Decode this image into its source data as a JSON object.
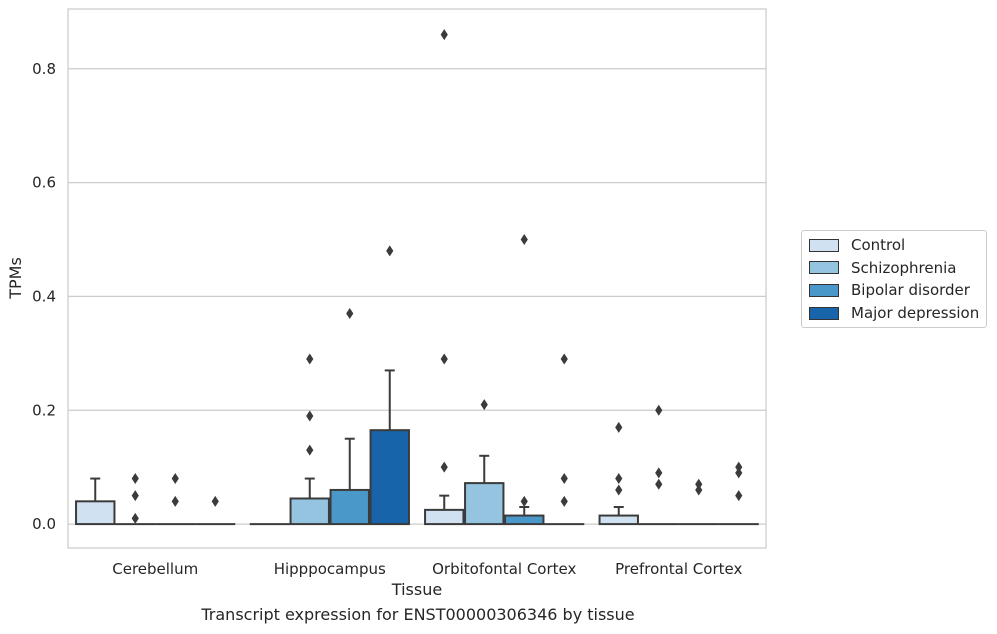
{
  "chart_data": {
    "type": "bar",
    "xlabel": "Tissue",
    "ylabel": "TPMs",
    "ylim": [
      -0.042,
      0.905
    ],
    "yticks": [
      "0.0",
      "0.2",
      "0.4",
      "0.6",
      "0.8"
    ],
    "ytick_values": [
      0.0,
      0.2,
      0.4,
      0.6,
      0.8
    ],
    "grid": true,
    "legend_position": "center-right outside",
    "categories": [
      "Cerebellum",
      "Hipppocampus",
      "Orbitofontal Cortex",
      "Prefrontal Cortex"
    ],
    "series": [
      {
        "name": "Control",
        "color": "#d0e1f2",
        "values": [
          0.04,
          0.0,
          0.025,
          0.015
        ],
        "error_upper": [
          0.08,
          null,
          0.05,
          0.03
        ],
        "outliers": [
          [],
          [],
          [
            0.86,
            0.29,
            0.1
          ],
          [
            0.17,
            0.08,
            0.06
          ]
        ]
      },
      {
        "name": "Schizophrenia",
        "color": "#94c4df",
        "values": [
          0.0,
          0.045,
          0.072,
          0.0
        ],
        "error_upper": [
          null,
          0.08,
          0.12,
          null
        ],
        "outliers": [
          [
            0.08,
            0.05,
            0.01
          ],
          [
            0.29,
            0.19,
            0.13
          ],
          [
            0.21
          ],
          [
            0.2,
            0.09,
            0.07
          ]
        ]
      },
      {
        "name": "Bipolar disorder",
        "color": "#4a98c9",
        "values": [
          0.0,
          0.06,
          0.015,
          0.0
        ],
        "error_upper": [
          null,
          0.15,
          0.03,
          null
        ],
        "outliers": [
          [
            0.08,
            0.04
          ],
          [
            0.37
          ],
          [
            0.5,
            0.04
          ],
          [
            0.07,
            0.06
          ]
        ]
      },
      {
        "name": "Major depression",
        "color": "#1764ab",
        "values": [
          0.0,
          0.165,
          0.0,
          0.0
        ],
        "error_upper": [
          null,
          0.27,
          null,
          null
        ],
        "outliers": [
          [
            0.04
          ],
          [
            0.48
          ],
          [
            0.29,
            0.08,
            0.04
          ],
          [
            0.1,
            0.09,
            0.05
          ]
        ]
      }
    ]
  },
  "caption": "Transcript expression for ENST00000306346 by tissue"
}
